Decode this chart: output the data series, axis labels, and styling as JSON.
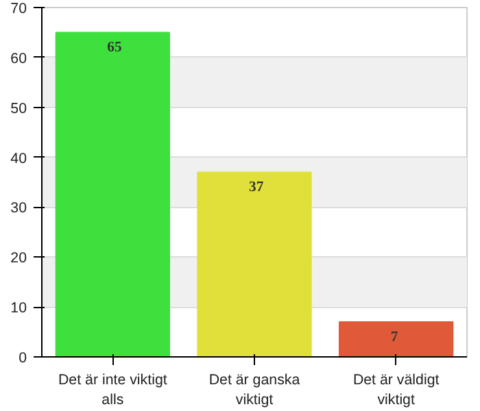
{
  "chart_data": {
    "type": "bar",
    "categories": [
      "Det är inte viktigt alls",
      "Det är ganska viktigt",
      "Det är väldigt viktigt"
    ],
    "values": [
      65,
      37,
      7
    ],
    "colors": [
      "#3ee03e",
      "#e0e03a",
      "#e05a3a"
    ],
    "ylim": [
      0,
      70
    ],
    "yticks": [
      0,
      10,
      20,
      30,
      40,
      50,
      60,
      70
    ],
    "grid": "y",
    "data_labels": true
  }
}
